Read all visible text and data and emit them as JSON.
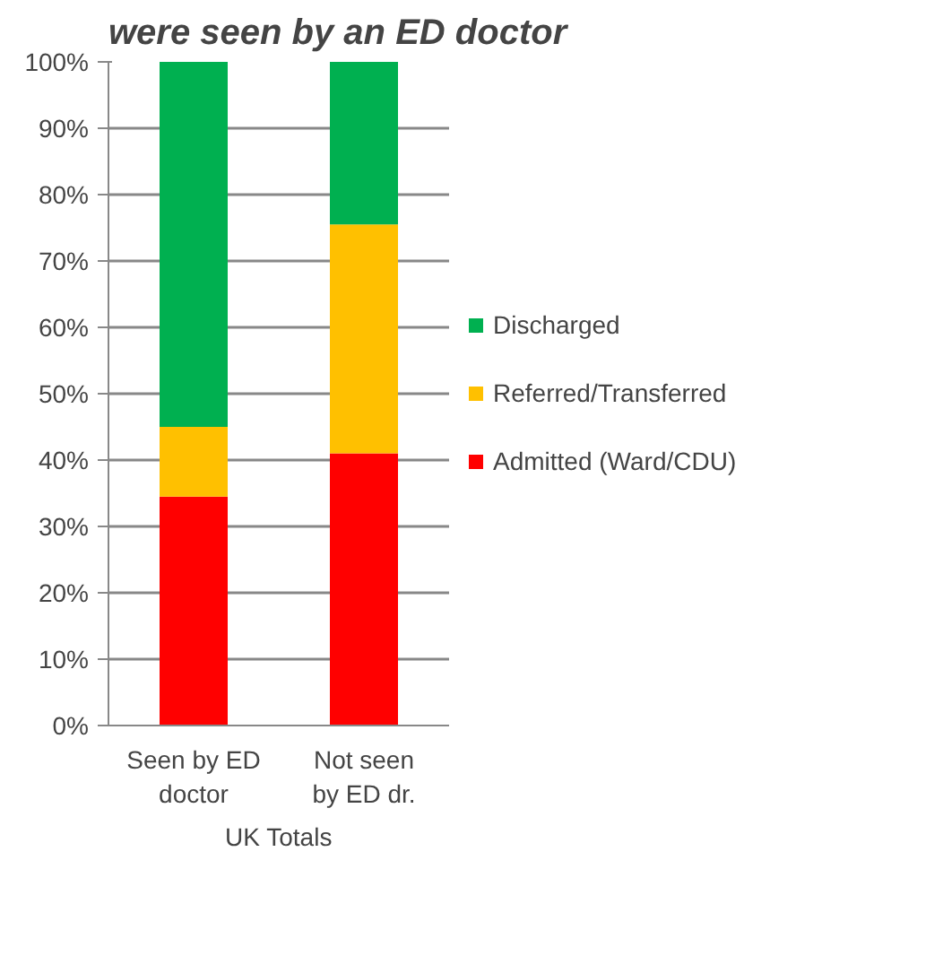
{
  "chart_data": {
    "type": "bar",
    "title": "were seen by an ED doctor",
    "xlabel": "UK Totals",
    "categories": [
      "Seen by ED doctor",
      "Not seen by ED dr."
    ],
    "stacked": true,
    "series": [
      {
        "name": "Admitted (Ward/CDU)",
        "color": "#ff0000",
        "values": [
          34.5,
          41
        ]
      },
      {
        "name": "Referred/Transferred",
        "color": "#ffc000",
        "values": [
          10.5,
          34.5
        ]
      },
      {
        "name": "Discharged",
        "color": "#00b050",
        "values": [
          55,
          24.5
        ]
      }
    ],
    "ylim": [
      0,
      100
    ],
    "yticks": [
      {
        "value": 0,
        "label": "0%"
      },
      {
        "value": 10,
        "label": "10%"
      },
      {
        "value": 20,
        "label": "20%"
      },
      {
        "value": 30,
        "label": "30%"
      },
      {
        "value": 40,
        "label": "40%"
      },
      {
        "value": 50,
        "label": "50%"
      },
      {
        "value": 60,
        "label": "60%"
      },
      {
        "value": 70,
        "label": "70%"
      },
      {
        "value": 80,
        "label": "80%"
      },
      {
        "value": 90,
        "label": "90%"
      },
      {
        "value": 100,
        "label": "100%"
      }
    ],
    "grid": "y",
    "legend": "right"
  }
}
